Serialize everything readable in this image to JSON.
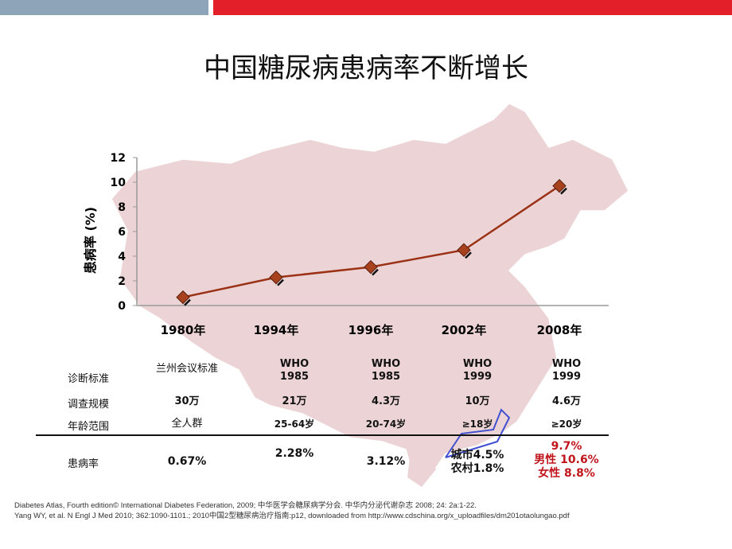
{
  "title": "中国糖尿病患病率不断增长",
  "colors": {
    "line": "#9b3216",
    "marker": "#a8411d",
    "map": "#ecd4d6",
    "accent_red": "#e3202a",
    "header_gray": "#8ea4b8"
  },
  "chart_data": {
    "type": "line",
    "ylabel": "患病率 (%)",
    "ylim": [
      0,
      12
    ],
    "yticks": [
      0,
      2,
      4,
      6,
      8,
      10,
      12
    ],
    "categories": [
      "1980年",
      "1994年",
      "1996年",
      "2002年",
      "2008年"
    ],
    "values": [
      0.67,
      2.28,
      3.12,
      4.5,
      9.7
    ],
    "grid": false
  },
  "table": {
    "row_labels": [
      "诊断标准",
      "调查规模",
      "年龄范围",
      "患病率"
    ],
    "columns": [
      {
        "standard": [
          "兰州会议标准"
        ],
        "scale": "30万",
        "age": "全人群",
        "rate": [
          "0.67%"
        ]
      },
      {
        "standard": [
          "WHO",
          "1985"
        ],
        "scale": "21万",
        "age": "25-64岁",
        "rate": [
          "2.28%"
        ]
      },
      {
        "standard": [
          "WHO",
          "1985"
        ],
        "scale": "4.3万",
        "age": "20-74岁",
        "rate": [
          "3.12%"
        ]
      },
      {
        "standard": [
          "WHO",
          "1999"
        ],
        "scale": "10万",
        "age": "≥18岁",
        "rate": [
          "城市4.5%",
          "农村1.8%"
        ]
      },
      {
        "standard": [
          "WHO",
          "1999"
        ],
        "scale": "4.6万",
        "age": "≥20岁",
        "rate": [
          "9.7%",
          "男性 10.6%",
          "女性 8.8%"
        ]
      }
    ]
  },
  "footnotes": [
    "Diabetes Atlas, Fourth edition© International Diabetes Federation, 2009; 中华医学会糖尿病学分会. 中华内分泌代谢杂志 2008; 24: 2a:1-22.",
    "Yang WY, et al. N Engl J Med 2010; 362:1090-1101.; 2010中国2型糖尿病治疗指南:p12, downloaded from http://www.cdschina.org/x_uploadfiles/dm201otaolungao.pdf"
  ]
}
